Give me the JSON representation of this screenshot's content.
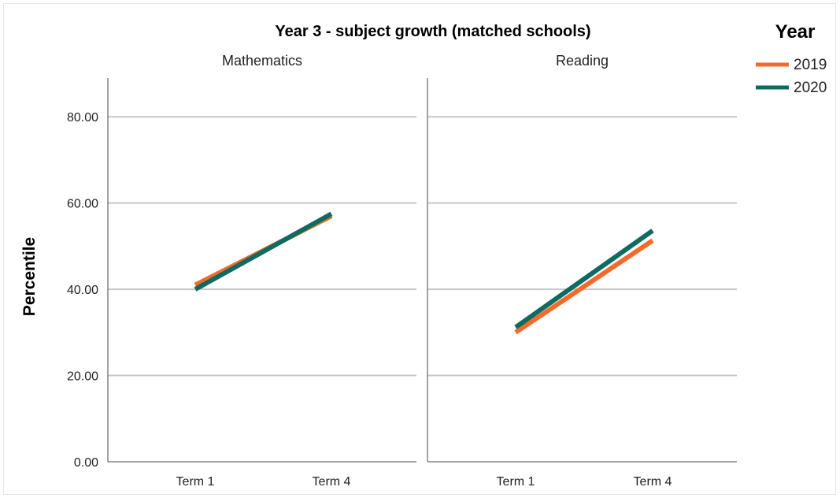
{
  "chart_data": {
    "type": "line",
    "title": "Year 3 - subject growth (matched schools)",
    "ylabel": "Percentile",
    "xlabel": "",
    "ylim": [
      0,
      89
    ],
    "yticks": [
      "0.00",
      "20.00",
      "40.00",
      "60.00",
      "80.00"
    ],
    "categories": [
      "Term 1",
      "Term 4"
    ],
    "grid": true,
    "legend": {
      "title": "Year",
      "placement": "top-right",
      "entries": [
        "2019",
        "2020"
      ]
    },
    "panels": [
      {
        "name": "Mathematics",
        "series": [
          {
            "name": "2019",
            "color": "#f26b2b",
            "values": [
              41.0,
              57.0
            ]
          },
          {
            "name": "2020",
            "color": "#0f6a60",
            "values": [
              40.0,
              57.5
            ]
          }
        ]
      },
      {
        "name": "Reading",
        "series": [
          {
            "name": "2019",
            "color": "#f26b2b",
            "values": [
              30.0,
              51.3
            ]
          },
          {
            "name": "2020",
            "color": "#0f6a60",
            "values": [
              31.2,
              53.6
            ]
          }
        ]
      }
    ]
  }
}
